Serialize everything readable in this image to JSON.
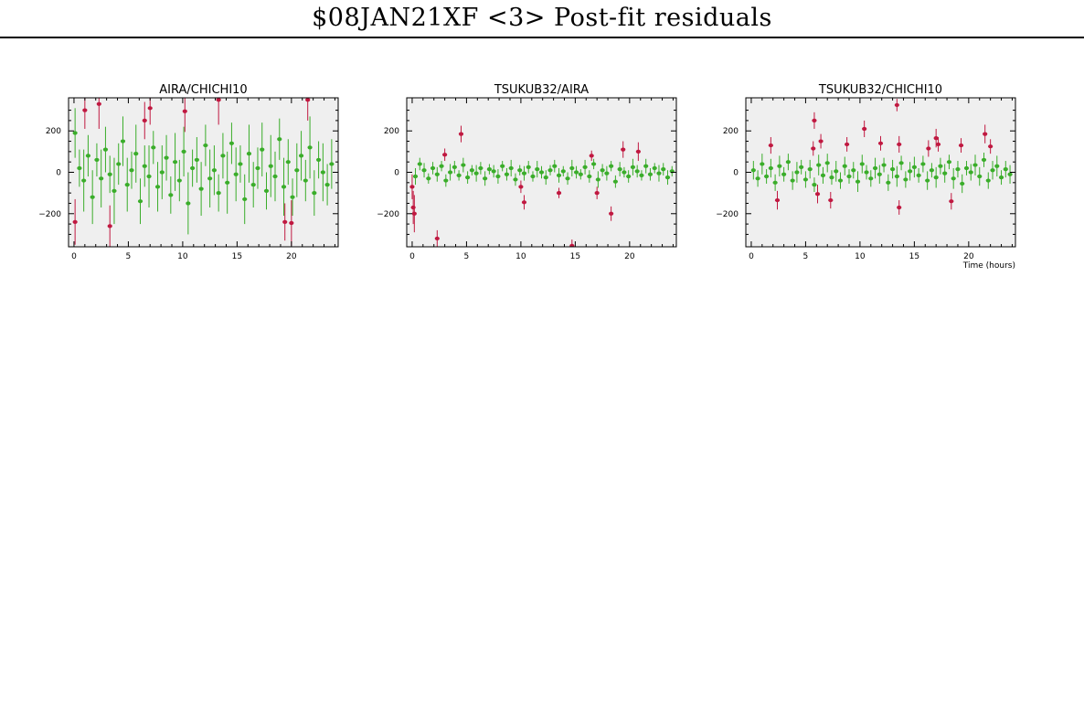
{
  "page": {
    "title": "$08JAN21XF <3> Post-fit residuals"
  },
  "colors": {
    "good": "#3aad2a",
    "flagged": "#c01840",
    "panel_bg": "#efefef",
    "axis": "#000000"
  },
  "chart_data": [
    {
      "type": "scatter",
      "title": "AIRA/CHICHI10",
      "xlabel": "",
      "ylabel": "",
      "xlim": [
        -0.5,
        24.3
      ],
      "ylim": [
        -360,
        360
      ],
      "x_ticks": [
        0,
        5,
        10,
        15,
        20
      ],
      "y_ticks": [
        -200,
        0,
        200
      ],
      "x_tick_labels": [
        "0",
        "5",
        "10",
        "15",
        "20"
      ],
      "y_tick_labels": [
        "−200",
        "0",
        "200"
      ],
      "grid": false,
      "series": [
        {
          "role": "good",
          "x": [
            0.1,
            0.5,
            0.9,
            1.3,
            1.7,
            2.1,
            2.5,
            2.9,
            3.3,
            3.7,
            4.1,
            4.5,
            4.9,
            5.3,
            5.7,
            6.1,
            6.5,
            6.9,
            7.3,
            7.7,
            8.1,
            8.5,
            8.9,
            9.3,
            9.7,
            10.1,
            10.5,
            10.9,
            11.3,
            11.7,
            12.1,
            12.5,
            12.9,
            13.3,
            13.7,
            14.1,
            14.5,
            14.9,
            15.3,
            15.7,
            16.1,
            16.5,
            16.9,
            17.3,
            17.7,
            18.1,
            18.5,
            18.9,
            19.3,
            19.7,
            20.1,
            20.5,
            20.9,
            21.3,
            21.7,
            22.1,
            22.5,
            22.9,
            23.3,
            23.7
          ],
          "y": [
            190,
            20,
            -40,
            80,
            -120,
            60,
            -30,
            110,
            -10,
            -90,
            40,
            150,
            -60,
            10,
            90,
            -140,
            30,
            -20,
            120,
            -70,
            0,
            70,
            -110,
            50,
            -40,
            100,
            -150,
            20,
            60,
            -80,
            130,
            -30,
            10,
            -100,
            80,
            -50,
            140,
            -10,
            40,
            -130,
            90,
            -60,
            20,
            110,
            -90,
            30,
            -20,
            160,
            -70,
            50,
            -120,
            10,
            80,
            -40,
            120,
            -100,
            60,
            0,
            -60,
            40
          ],
          "err": [
            120,
            90,
            150,
            100,
            130,
            80,
            140,
            110,
            90,
            160,
            100,
            120,
            130,
            90,
            140,
            110,
            100,
            150,
            80,
            120,
            130,
            110,
            90,
            140,
            100,
            120,
            150,
            90,
            110,
            130,
            100,
            140,
            120,
            90,
            110,
            150,
            100,
            130,
            90,
            120,
            140,
            110,
            100,
            130,
            90,
            150,
            120,
            100,
            140,
            110,
            90,
            130,
            120,
            100,
            150,
            110,
            90,
            140,
            100,
            120
          ]
        },
        {
          "role": "flagged",
          "x": [
            0.1,
            1.0,
            2.3,
            3.3,
            6.5,
            7.0,
            10.2,
            13.3,
            19.4,
            20.0,
            21.5
          ],
          "y": [
            -240,
            300,
            330,
            -260,
            250,
            310,
            295,
            350,
            -240,
            -245,
            350
          ],
          "err": [
            110,
            90,
            120,
            100,
            90,
            80,
            100,
            120,
            90,
            110,
            100
          ]
        }
      ]
    },
    {
      "type": "scatter",
      "title": "TSUKUB32/AIRA",
      "xlabel": "",
      "ylabel": "",
      "xlim": [
        -0.5,
        24.3
      ],
      "ylim": [
        -360,
        360
      ],
      "x_ticks": [
        0,
        5,
        10,
        15,
        20
      ],
      "y_ticks": [
        -200,
        0,
        200
      ],
      "x_tick_labels": [
        "0",
        "5",
        "10",
        "15",
        "20"
      ],
      "y_tick_labels": [
        "−200",
        "0",
        "200"
      ],
      "grid": false,
      "series": [
        {
          "role": "good",
          "x": [
            0.3,
            0.7,
            1.1,
            1.5,
            1.9,
            2.3,
            2.7,
            3.1,
            3.5,
            3.9,
            4.3,
            4.7,
            5.1,
            5.5,
            5.9,
            6.3,
            6.7,
            7.1,
            7.5,
            7.9,
            8.3,
            8.7,
            9.1,
            9.5,
            9.9,
            10.3,
            10.7,
            11.1,
            11.5,
            11.9,
            12.3,
            12.7,
            13.1,
            13.5,
            13.9,
            14.3,
            14.7,
            15.1,
            15.5,
            15.9,
            16.3,
            16.7,
            17.1,
            17.5,
            17.9,
            18.3,
            18.7,
            19.1,
            19.5,
            19.9,
            20.3,
            20.7,
            21.1,
            21.5,
            21.9,
            22.3,
            22.7,
            23.1,
            23.5,
            23.9
          ],
          "y": [
            -20,
            40,
            10,
            -30,
            20,
            -10,
            30,
            -40,
            0,
            25,
            -15,
            35,
            -25,
            10,
            -5,
            20,
            -30,
            15,
            5,
            -20,
            30,
            -10,
            20,
            -35,
            10,
            -5,
            25,
            -20,
            15,
            0,
            -25,
            10,
            30,
            -15,
            5,
            -30,
            20,
            0,
            -10,
            25,
            -20,
            40,
            -35,
            10,
            -5,
            30,
            -45,
            15,
            0,
            -20,
            25,
            5,
            -15,
            30,
            -10,
            20,
            -5,
            15,
            -25,
            5
          ],
          "err": [
            40,
            30,
            35,
            25,
            30,
            35,
            25,
            30,
            40,
            30,
            25,
            35,
            30,
            25,
            40,
            30,
            35,
            25,
            30,
            35,
            25,
            30,
            40,
            30,
            25,
            35,
            30,
            25,
            40,
            30,
            35,
            25,
            30,
            35,
            25,
            30,
            40,
            30,
            25,
            35,
            30,
            25,
            40,
            30,
            35,
            25,
            30,
            35,
            25,
            30,
            40,
            30,
            25,
            35,
            30,
            25,
            40,
            30,
            35,
            25
          ]
        },
        {
          "role": "flagged",
          "x": [
            0.0,
            0.1,
            0.2,
            2.3,
            3.0,
            4.5,
            10.0,
            10.3,
            13.5,
            14.7,
            16.5,
            17.0,
            18.3,
            19.4,
            20.8
          ],
          "y": [
            -70,
            -170,
            -200,
            -320,
            85,
            185,
            -70,
            -145,
            -100,
            -355,
            80,
            -100,
            -200,
            110,
            100
          ],
          "err": [
            60,
            80,
            90,
            40,
            30,
            40,
            30,
            35,
            25,
            30,
            25,
            30,
            35,
            40,
            45
          ]
        }
      ]
    },
    {
      "type": "scatter",
      "title": "TSUKUB32/CHICHI10",
      "xlabel": "Time (hours)",
      "ylabel": "",
      "xlim": [
        -0.5,
        24.3
      ],
      "ylim": [
        -360,
        360
      ],
      "x_ticks": [
        0,
        5,
        10,
        15,
        20
      ],
      "y_ticks": [
        -200,
        0,
        200
      ],
      "x_tick_labels": [
        "0",
        "5",
        "10",
        "15",
        "20"
      ],
      "y_tick_labels": [
        "−200",
        "0",
        "200"
      ],
      "grid": false,
      "series": [
        {
          "role": "good",
          "x": [
            0.2,
            0.6,
            1.0,
            1.4,
            1.8,
            2.2,
            2.6,
            3.0,
            3.4,
            3.8,
            4.2,
            4.6,
            5.0,
            5.4,
            5.8,
            6.2,
            6.6,
            7.0,
            7.4,
            7.8,
            8.2,
            8.6,
            9.0,
            9.4,
            9.8,
            10.2,
            10.6,
            11.0,
            11.4,
            11.8,
            12.2,
            12.6,
            13.0,
            13.4,
            13.8,
            14.2,
            14.6,
            15.0,
            15.4,
            15.8,
            16.2,
            16.6,
            17.0,
            17.4,
            17.8,
            18.2,
            18.6,
            19.0,
            19.4,
            19.8,
            20.2,
            20.6,
            21.0,
            21.4,
            21.8,
            22.2,
            22.6,
            23.0,
            23.4,
            23.8
          ],
          "y": [
            10,
            -30,
            40,
            -20,
            20,
            -50,
            30,
            -10,
            50,
            -40,
            0,
            25,
            -35,
            15,
            -60,
            35,
            -15,
            45,
            -25,
            5,
            -40,
            30,
            -20,
            10,
            -45,
            40,
            0,
            -30,
            20,
            -10,
            35,
            -50,
            15,
            -20,
            45,
            -35,
            5,
            25,
            -15,
            40,
            -40,
            10,
            -25,
            30,
            -5,
            50,
            -30,
            15,
            -55,
            20,
            0,
            35,
            -20,
            60,
            -40,
            10,
            30,
            -25,
            15,
            -10
          ],
          "err": [
            45,
            40,
            50,
            35,
            45,
            40,
            50,
            35,
            40,
            45,
            50,
            35,
            40,
            45,
            35,
            50,
            40,
            45,
            35,
            50,
            40,
            45,
            35,
            40,
            50,
            45,
            35,
            40,
            50,
            45,
            35,
            40,
            45,
            50,
            35,
            40,
            45,
            50,
            35,
            40,
            45,
            35,
            50,
            40,
            45,
            35,
            50,
            40,
            45,
            35,
            40,
            50,
            45,
            35,
            40,
            45,
            50,
            35,
            40,
            45
          ]
        },
        {
          "role": "flagged",
          "x": [
            1.8,
            2.4,
            5.7,
            5.8,
            6.1,
            6.4,
            7.3,
            8.8,
            10.4,
            11.9,
            13.4,
            13.6,
            13.6,
            16.3,
            17.0,
            17.2,
            18.4,
            19.3,
            21.5,
            22.0
          ],
          "y": [
            130,
            -135,
            115,
            250,
            -105,
            150,
            -135,
            135,
            210,
            140,
            325,
            135,
            -170,
            115,
            165,
            135,
            -140,
            130,
            185,
            125
          ],
          "err": [
            40,
            45,
            35,
            40,
            45,
            35,
            40,
            35,
            40,
            35,
            30,
            40,
            35,
            40,
            45,
            35,
            40,
            35,
            45,
            35
          ]
        }
      ]
    }
  ]
}
